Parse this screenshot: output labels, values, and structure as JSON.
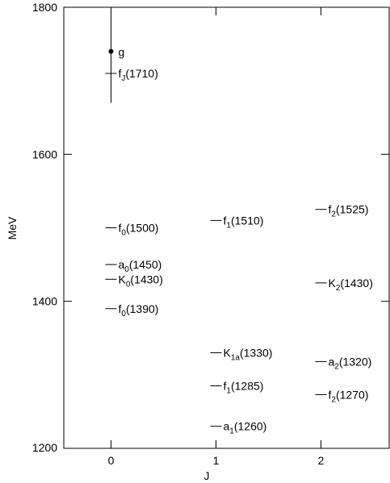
{
  "chart_data": {
    "type": "scatter",
    "xlabel": "J",
    "ylabel": "MeV",
    "xlim": [
      -0.45,
      2.65
    ],
    "ylim": [
      1200,
      1800
    ],
    "xticks": [
      0,
      1,
      2
    ],
    "yticks": [
      1200,
      1400,
      1600,
      1800
    ],
    "grid": false,
    "legend": "none",
    "states": [
      {
        "j": 0,
        "mass": 1710,
        "label_base": "f",
        "label_sub": "J",
        "label_rest": "(1710)"
      },
      {
        "j": 0,
        "mass": 1500,
        "label_base": "f",
        "label_sub": "0",
        "label_rest": "(1500)"
      },
      {
        "j": 0,
        "mass": 1450,
        "label_base": "a",
        "label_sub": "0",
        "label_rest": "(1450)"
      },
      {
        "j": 0,
        "mass": 1430,
        "label_base": "K",
        "label_sub": "0",
        "label_rest": "(1430)"
      },
      {
        "j": 0,
        "mass": 1390,
        "label_base": "f",
        "label_sub": "0",
        "label_rest": "(1390)"
      },
      {
        "j": 1,
        "mass": 1510,
        "label_base": "f",
        "label_sub": "1",
        "label_rest": "(1510)"
      },
      {
        "j": 1,
        "mass": 1330,
        "label_base": "K",
        "label_sub": "1a",
        "label_rest": "(1330)"
      },
      {
        "j": 1,
        "mass": 1285,
        "label_base": "f",
        "label_sub": "1",
        "label_rest": "(1285)"
      },
      {
        "j": 1,
        "mass": 1230,
        "label_base": "a",
        "label_sub": "1",
        "label_rest": "(1260)"
      },
      {
        "j": 2,
        "mass": 1525,
        "label_base": "f",
        "label_sub": "2",
        "label_rest": "(1525)"
      },
      {
        "j": 2,
        "mass": 1425,
        "label_base": "K",
        "label_sub": "2",
        "label_rest": "(1430)"
      },
      {
        "j": 2,
        "mass": 1318,
        "label_base": "a",
        "label_sub": "2",
        "label_rest": "(1320)"
      },
      {
        "j": 2,
        "mass": 1273,
        "label_base": "f",
        "label_sub": "2",
        "label_rest": "(1270)"
      }
    ],
    "glueball": {
      "j": 0,
      "mass": 1740,
      "error_low": 1670,
      "error_high": 1800,
      "label": "g"
    }
  }
}
